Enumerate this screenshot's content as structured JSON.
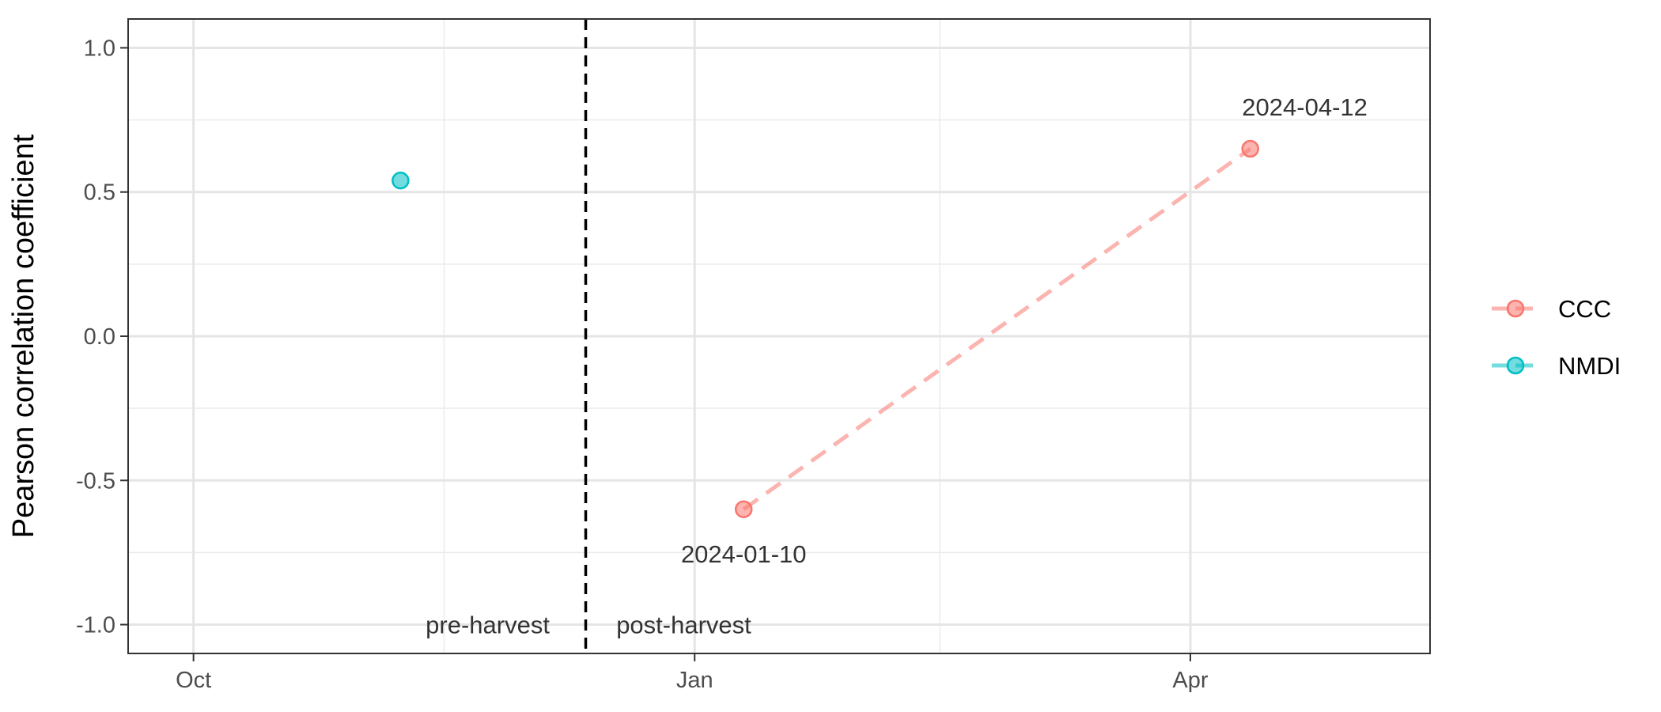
{
  "chart_data": {
    "type": "scatter",
    "title": "",
    "xlabel": "",
    "ylabel": "Pearson correlation coefficient",
    "x_axis": {
      "scale": "date",
      "range": [
        "2023-09-19",
        "2024-05-15"
      ],
      "ticks": [
        {
          "date": "2023-10-01",
          "label": "Oct"
        },
        {
          "date": "2024-01-01",
          "label": "Jan"
        },
        {
          "date": "2024-04-01",
          "label": "Apr"
        }
      ],
      "minor_ticks": [
        "2023-11-16",
        "2024-02-15",
        "2024-05-16"
      ]
    },
    "y_axis": {
      "range": [
        -1.1,
        1.1
      ],
      "ticks": [
        {
          "value": 1.0,
          "label": "1.0"
        },
        {
          "value": 0.5,
          "label": "0.5"
        },
        {
          "value": 0.0,
          "label": "0.0"
        },
        {
          "value": -0.5,
          "label": "-0.5"
        },
        {
          "value": -1.0,
          "label": "-1.0"
        }
      ],
      "minor_ticks": [
        0.75,
        0.25,
        -0.25,
        -0.75
      ]
    },
    "grid": true,
    "legend_position": "right",
    "series": [
      {
        "name": "CCC",
        "color": "#F8766D",
        "line": "dashed",
        "points": [
          {
            "x": "2024-01-10",
            "y": -0.6
          },
          {
            "x": "2024-04-12",
            "y": 0.65
          }
        ]
      },
      {
        "name": "NMDI",
        "color": "#00BFC4",
        "line": "dashed",
        "points": [
          {
            "x": "2023-11-08",
            "y": 0.54
          }
        ]
      }
    ],
    "reference_lines": [
      {
        "orientation": "vertical",
        "x": "2023-12-12",
        "style": "dashed",
        "color": "#000000"
      }
    ],
    "annotations": [
      {
        "text": "2024-01-10",
        "x": "2024-01-10",
        "y": -0.755
      },
      {
        "text": "2024-04-12",
        "x": "2024-04-22",
        "y": 0.795
      },
      {
        "text": "pre-harvest",
        "x": "2023-11-24",
        "y": -1.0
      },
      {
        "text": "post-harvest",
        "x": "2023-12-30",
        "y": -1.0
      }
    ]
  }
}
